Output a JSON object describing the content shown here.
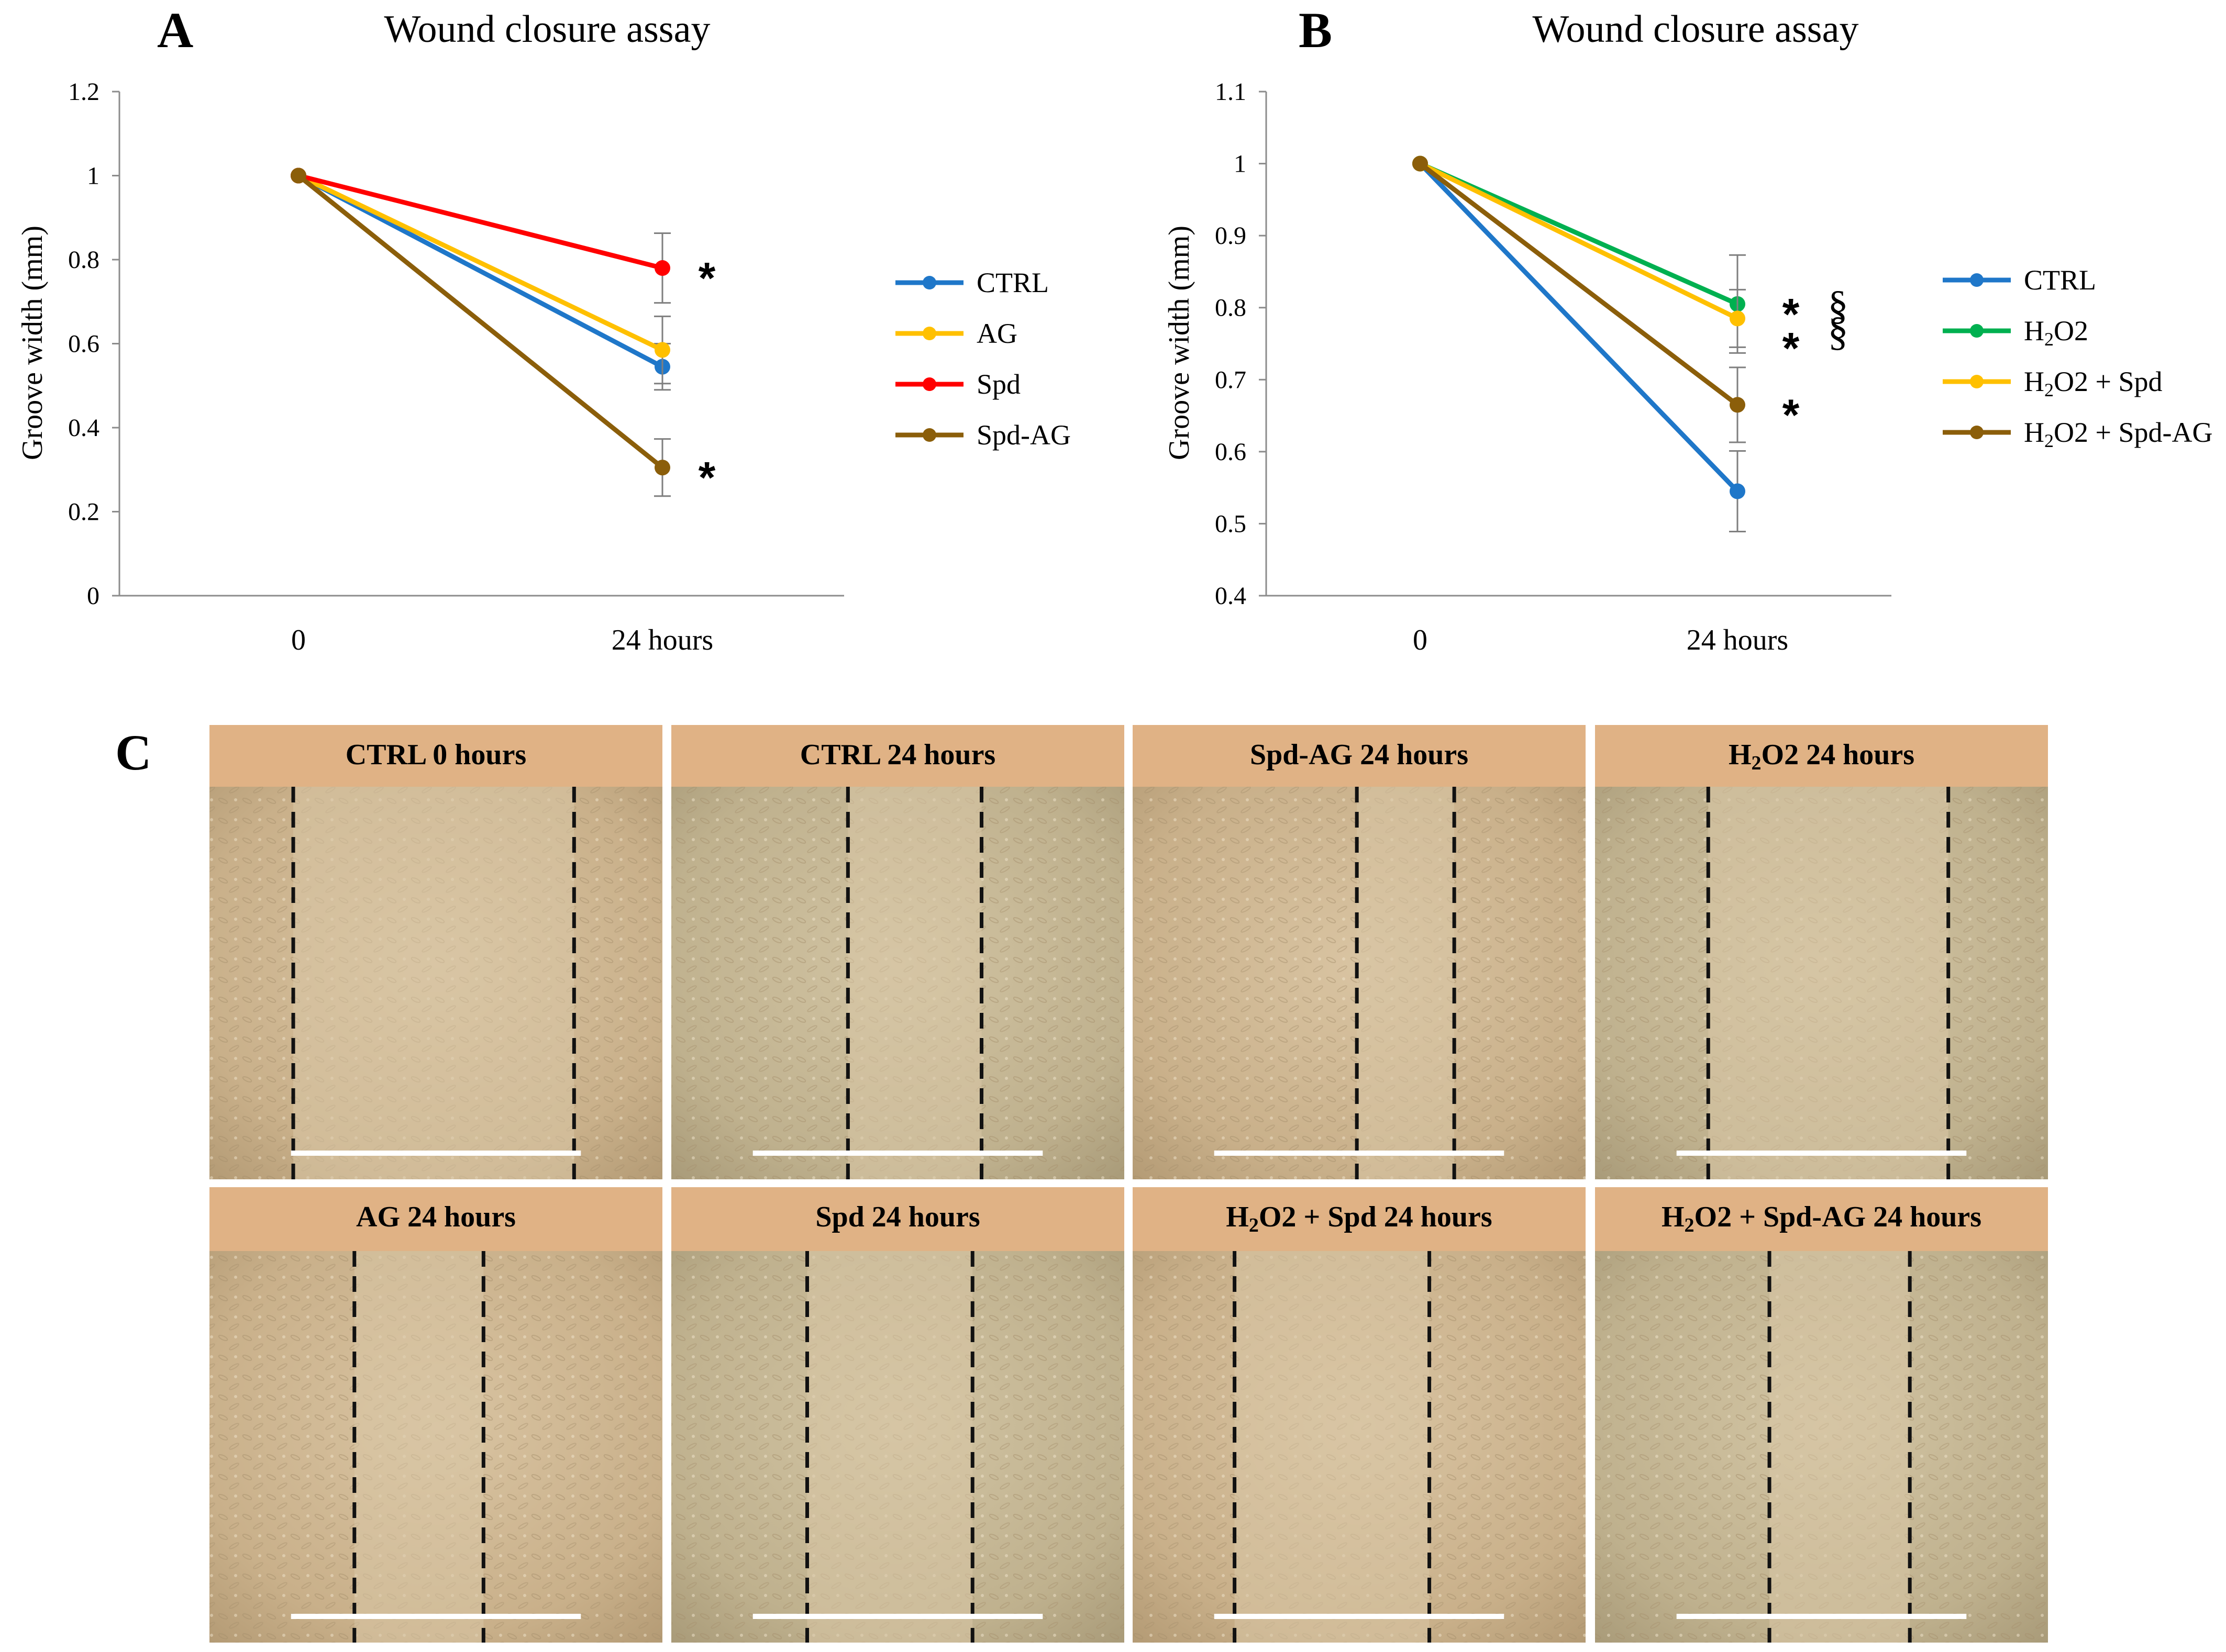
{
  "figure_panels": {
    "A": "A",
    "B": "B",
    "C": "C"
  },
  "chart_data": [
    {
      "panel": "A",
      "type": "line",
      "title": "Wound closure assay",
      "xlabel": "",
      "ylabel": "Groove width (mm)",
      "categories": [
        "0",
        "24 hours"
      ],
      "ylim": [
        0,
        1.2
      ],
      "yticks": [
        0,
        0.2,
        0.4,
        0.6,
        0.8,
        1,
        1.2
      ],
      "ytick_labels": [
        "0",
        "0.2",
        "0.4",
        "0.6",
        "0.8",
        "1",
        "1.2"
      ],
      "grid": false,
      "legend_position": "right",
      "series": [
        {
          "name": "CTRL",
          "color": "#1f77c9",
          "values": [
            1.0,
            0.545
          ],
          "errors": [
            0,
            0.055
          ]
        },
        {
          "name": "AG",
          "color": "#ffc000",
          "values": [
            1.0,
            0.585
          ],
          "errors": [
            0,
            0.08
          ]
        },
        {
          "name": "Spd",
          "color": "#ff0000",
          "values": [
            1.0,
            0.78
          ],
          "errors": [
            0,
            0.083
          ]
        },
        {
          "name": "Spd-AG",
          "color": "#8b5e0a",
          "values": [
            1.0,
            0.305
          ],
          "errors": [
            0,
            0.068
          ]
        }
      ],
      "annotations": [
        {
          "text": "*",
          "x": "24 hours",
          "y": 0.78
        },
        {
          "text": "*",
          "x": "24 hours",
          "y": 0.305
        }
      ]
    },
    {
      "panel": "B",
      "type": "line",
      "title": "Wound closure assay",
      "xlabel": "",
      "ylabel": "Groove width (mm)",
      "categories": [
        "0",
        "24 hours"
      ],
      "ylim": [
        0.4,
        1.1
      ],
      "yticks": [
        0.4,
        0.5,
        0.6,
        0.7,
        0.8,
        0.9,
        1,
        1.1
      ],
      "ytick_labels": [
        "0.4",
        "0.5",
        "0.6",
        "0.7",
        "0.8",
        "0.9",
        "1",
        "1.1"
      ],
      "grid": false,
      "legend_position": "right",
      "series": [
        {
          "name": "CTRL",
          "legend_main": "CTRL",
          "legend_sub": "",
          "legend_tail": "",
          "color": "#1f77c9",
          "values": [
            1.0,
            0.545
          ],
          "errors": [
            0,
            0.056
          ]
        },
        {
          "name": "H2O2",
          "legend_main": "H",
          "legend_sub": "2",
          "legend_tail": "O2",
          "color": "#00b050",
          "values": [
            1.0,
            0.805
          ],
          "errors": [
            0,
            0.068
          ]
        },
        {
          "name": "H2O2 + Spd",
          "legend_main": "H",
          "legend_sub": "2",
          "legend_tail": "O2 + Spd",
          "color": "#ffc000",
          "values": [
            1.0,
            0.785
          ],
          "errors": [
            0,
            0.04
          ]
        },
        {
          "name": "H2O2 + Spd-AG",
          "legend_main": "H",
          "legend_sub": "2",
          "legend_tail": "O2 + Spd-AG",
          "color": "#8b5e0a",
          "values": [
            1.0,
            0.665
          ],
          "errors": [
            0,
            0.052
          ]
        }
      ],
      "annotations": [
        {
          "text": "*",
          "x": "24 hours",
          "y": 0.805
        },
        {
          "text": "*",
          "x": "24 hours",
          "y": 0.785
        },
        {
          "text": "*",
          "x": "24 hours",
          "y": 0.665
        },
        {
          "text": "§",
          "x": "24 hours",
          "y": 0.805
        },
        {
          "text": "§",
          "x": "24 hours",
          "y": 0.785
        }
      ]
    }
  ],
  "panel_c": {
    "tiles": [
      {
        "title_main": "CTRL 0 hours",
        "title_sub": "",
        "title_tail": "",
        "gap_left": 0.185,
        "gap_right": 0.805
      },
      {
        "title_main": "CTRL 24 hours",
        "title_sub": "",
        "title_tail": "",
        "gap_left": 0.39,
        "gap_right": 0.685
      },
      {
        "title_main": "Spd-AG 24 hours",
        "title_sub": "",
        "title_tail": "",
        "gap_left": 0.495,
        "gap_right": 0.71
      },
      {
        "title_main": "H",
        "title_sub": "2",
        "title_tail": "O2 24 hours",
        "gap_left": 0.25,
        "gap_right": 0.78
      },
      {
        "title_main": "AG 24 hours",
        "title_sub": "",
        "title_tail": "",
        "gap_left": 0.32,
        "gap_right": 0.605
      },
      {
        "title_main": "Spd 24 hours",
        "title_sub": "",
        "title_tail": "",
        "gap_left": 0.3,
        "gap_right": 0.665
      },
      {
        "title_main": "H",
        "title_sub": "2",
        "title_tail": "O2 + Spd 24 hours",
        "gap_left": 0.225,
        "gap_right": 0.655
      },
      {
        "title_main": "H",
        "title_sub": "2",
        "title_tail": "O2 + Spd-AG 24 hours",
        "gap_left": 0.385,
        "gap_right": 0.695
      }
    ]
  }
}
